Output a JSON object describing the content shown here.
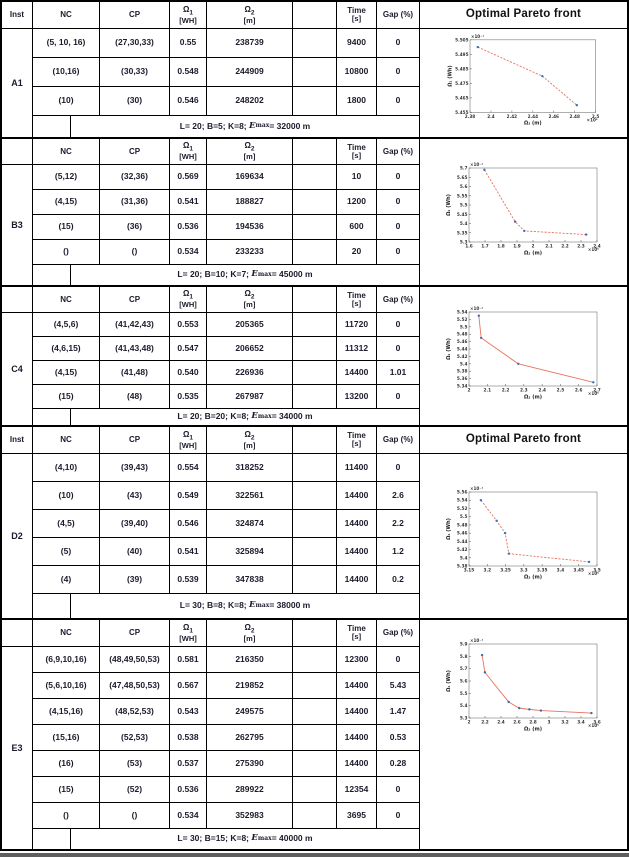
{
  "header": {
    "inst": "Inst",
    "nc": "NC",
    "cp": "CP",
    "omega1_sym": "Ω",
    "omega1_sub": "1",
    "omega1_unit": "[WH]",
    "omega2_sym": "Ω",
    "omega2_sub": "2",
    "omega2_unit": "[m]",
    "empty_col": "",
    "time": "Time",
    "time_unit": "[s]",
    "gap": "Gap (%)",
    "pareto_title": "Optimal Pareto front"
  },
  "colors": {
    "text": "#1b1b2c",
    "border": "#000000",
    "pareto_line": "#e8745e",
    "pareto_marker": "#3a6fb5",
    "page_break_bar": "#5f5f5f"
  },
  "sections": [
    {
      "id": "A1",
      "inst": "A1",
      "header_inst": "Inst",
      "show_pareto_title": true,
      "rows": [
        {
          "nc": "(5, 10, 16)",
          "cp": "(27,30,33)",
          "w1": "0.55",
          "w2": "238739",
          "time": "9400",
          "gap": "0"
        },
        {
          "nc": "(10,16)",
          "cp": "(30,33)",
          "w1": "0.548",
          "w2": "244909",
          "time": "10800",
          "gap": "0"
        },
        {
          "nc": "(10)",
          "cp": "(30)",
          "w1": "0.546",
          "w2": "248202",
          "time": "1800",
          "gap": "0"
        }
      ],
      "footer": {
        "params": "L= 20; B=5; K=8;",
        "emax_e": "E",
        "emax_sup": "max",
        "emax_rest": " = 32000 m"
      }
    },
    {
      "id": "B3",
      "inst": "B3",
      "header_inst": "",
      "show_pareto_title": false,
      "rows": [
        {
          "nc": "(5,12)",
          "cp": "(32,36)",
          "w1": "0.569",
          "w2": "169634",
          "time": "10",
          "gap": "0"
        },
        {
          "nc": "(4,15)",
          "cp": "(31,36)",
          "w1": "0.541",
          "w2": "188827",
          "time": "1200",
          "gap": "0"
        },
        {
          "nc": "(15)",
          "cp": "(36)",
          "w1": "0.536",
          "w2": "194536",
          "time": "600",
          "gap": "0"
        },
        {
          "nc": "()",
          "cp": "()",
          "w1": "0.534",
          "w2": "233233",
          "time": "20",
          "gap": "0"
        }
      ],
      "footer": {
        "params": "L= 20; B=10; K=7;",
        "emax_e": "E",
        "emax_sup": "max",
        "emax_rest": " = 45000 m"
      }
    },
    {
      "id": "C4",
      "inst": "C4",
      "header_inst": "",
      "show_pareto_title": false,
      "rows": [
        {
          "nc": "(4,5,6)",
          "cp": "(41,42,43)",
          "w1": "0.553",
          "w2": "205365",
          "time": "11720",
          "gap": "0"
        },
        {
          "nc": "(4,6,15)",
          "cp": "(41,43,48)",
          "w1": "0.547",
          "w2": "206652",
          "time": "11312",
          "gap": "0"
        },
        {
          "nc": "(4,15)",
          "cp": "(41,48)",
          "w1": "0.540",
          "w2": "226936",
          "time": "14400",
          "gap": "1.01"
        },
        {
          "nc": "(15)",
          "cp": "(48)",
          "w1": "0.535",
          "w2": "267987",
          "time": "13200",
          "gap": "0"
        }
      ],
      "footer": {
        "params": "L= 20; B=20; K=8;",
        "emax_e": "E",
        "emax_sup": "max",
        "emax_rest": " = 34000 m"
      }
    },
    {
      "id": "D2",
      "inst": "D2",
      "header_inst": "Inst",
      "show_pareto_title": true,
      "rows": [
        {
          "nc": "(4,10)",
          "cp": "(39,43)",
          "w1": "0.554",
          "w2": "318252",
          "time": "11400",
          "gap": "0"
        },
        {
          "nc": "(10)",
          "cp": "(43)",
          "w1": "0.549",
          "w2": "322561",
          "time": "14400",
          "gap": "2.6"
        },
        {
          "nc": "(4,5)",
          "cp": "(39,40)",
          "w1": "0.546",
          "w2": "324874",
          "time": "14400",
          "gap": "2.2"
        },
        {
          "nc": "(5)",
          "cp": "(40)",
          "w1": "0.541",
          "w2": "325894",
          "time": "14400",
          "gap": "1.2"
        },
        {
          "nc": "(4)",
          "cp": "(39)",
          "w1": "0.539",
          "w2": "347838",
          "time": "14400",
          "gap": "0.2"
        }
      ],
      "footer": {
        "params": "L= 30; B=8; K=8;",
        "emax_e": "E",
        "emax_sup": "max",
        "emax_rest": " = 38000 m"
      }
    },
    {
      "id": "E3",
      "inst": "E3",
      "header_inst": "",
      "show_pareto_title": false,
      "rows": [
        {
          "nc": "(6,9,10,16)",
          "cp": "(48,49,50,53)",
          "w1": "0.581",
          "w2": "216350",
          "time": "12300",
          "gap": "0"
        },
        {
          "nc": "(5,6,10,16)",
          "cp": "(47,48,50,53)",
          "w1": "0.567",
          "w2": "219852",
          "time": "14400",
          "gap": "5.43"
        },
        {
          "nc": "(4,15,16)",
          "cp": "(48,52,53)",
          "w1": "0.543",
          "w2": "249575",
          "time": "14400",
          "gap": "1.47"
        },
        {
          "nc": "(15,16)",
          "cp": "(52,53)",
          "w1": "0.538",
          "w2": "262795",
          "time": "14400",
          "gap": "0.53"
        },
        {
          "nc": "(16)",
          "cp": "(53)",
          "w1": "0.537",
          "w2": "275390",
          "time": "14400",
          "gap": "0.28"
        },
        {
          "nc": "(15)",
          "cp": "(52)",
          "w1": "0.536",
          "w2": "289922",
          "time": "12354",
          "gap": "0"
        },
        {
          "nc": "()",
          "cp": "()",
          "w1": "0.534",
          "w2": "352983",
          "time": "3695",
          "gap": "0"
        }
      ],
      "footer": {
        "params": "L= 30; B=15; K=8;",
        "emax_e": "E",
        "emax_sup": "max",
        "emax_rest": " = 40000 m"
      }
    }
  ],
  "chart_data": [
    {
      "type": "line",
      "section": "A1",
      "x": [
        238739,
        244909,
        248202
      ],
      "y": [
        0.55,
        0.548,
        0.546
      ],
      "xlabel": "Ω₂ (m)",
      "ylabel": "Ω₁ (Wh)",
      "x_exponent": "×10⁵",
      "y_exponent": "×10⁻¹",
      "xlim": [
        238000,
        250000
      ],
      "xtick_step": 2000,
      "ylim": [
        0.5455,
        0.5505
      ],
      "ytick_step": 0.001,
      "line_style": "dashed",
      "line_color": "#e8745e",
      "marker_color": "#3a6fb5",
      "legend": "none",
      "grid": false
    },
    {
      "type": "line",
      "section": "B3",
      "x": [
        169634,
        188827,
        194536,
        233233
      ],
      "y": [
        0.569,
        0.541,
        0.536,
        0.534
      ],
      "xlabel": "Ω₂ (m)",
      "ylabel": "Ω₁ (Wh)",
      "x_exponent": "×10⁵",
      "y_exponent": "×10⁻¹",
      "xlim": [
        160000,
        240000
      ],
      "xtick_step": 10000,
      "ylim": [
        0.53,
        0.57
      ],
      "ytick_step": 0.005,
      "line_style": "dashed",
      "line_color": "#e8745e",
      "marker_color": "#3a6fb5",
      "legend": "none",
      "grid": false
    },
    {
      "type": "line",
      "section": "C4",
      "x": [
        205365,
        206652,
        226936,
        267987
      ],
      "y": [
        0.553,
        0.547,
        0.54,
        0.535
      ],
      "xlabel": "Ω₂ (m)",
      "ylabel": "Ω₁ (Wh)",
      "x_exponent": "×10⁵",
      "y_exponent": "×10⁻¹",
      "xlim": [
        200000,
        270000
      ],
      "xtick_step": 10000,
      "ylim": [
        0.534,
        0.554
      ],
      "ytick_step": 0.002,
      "line_style": "solid",
      "line_color": "#e8745e",
      "marker_color": "#3a6fb5",
      "legend": "none",
      "grid": false
    },
    {
      "type": "line",
      "section": "D2",
      "x": [
        318252,
        322561,
        324874,
        325894,
        347838
      ],
      "y": [
        0.554,
        0.549,
        0.546,
        0.541,
        0.539
      ],
      "xlabel": "Ω₂ (m)",
      "ylabel": "Ω₁ (Wh)",
      "x_exponent": "×10⁵",
      "y_exponent": "×10⁻¹",
      "xlim": [
        315000,
        350000
      ],
      "xtick_step": 5000,
      "ylim": [
        0.538,
        0.556
      ],
      "ytick_step": 0.002,
      "line_style": "dashed",
      "line_color": "#e8745e",
      "marker_color": "#3a6fb5",
      "legend": "none",
      "grid": false
    },
    {
      "type": "line",
      "section": "E3",
      "x": [
        216350,
        219852,
        249575,
        262795,
        275390,
        289922,
        352983
      ],
      "y": [
        0.581,
        0.567,
        0.543,
        0.538,
        0.537,
        0.536,
        0.534
      ],
      "xlabel": "Ω₂ (m)",
      "ylabel": "Ω₁ (Wh)",
      "x_exponent": "×10⁵",
      "y_exponent": "×10⁻¹",
      "xlim": [
        200000,
        360000
      ],
      "xtick_step": 20000,
      "ylim": [
        0.53,
        0.59
      ],
      "ytick_step": 0.01,
      "line_style": "solid",
      "line_color": "#e8745e",
      "marker_color": "#3a6fb5",
      "legend": "none",
      "grid": false
    }
  ]
}
